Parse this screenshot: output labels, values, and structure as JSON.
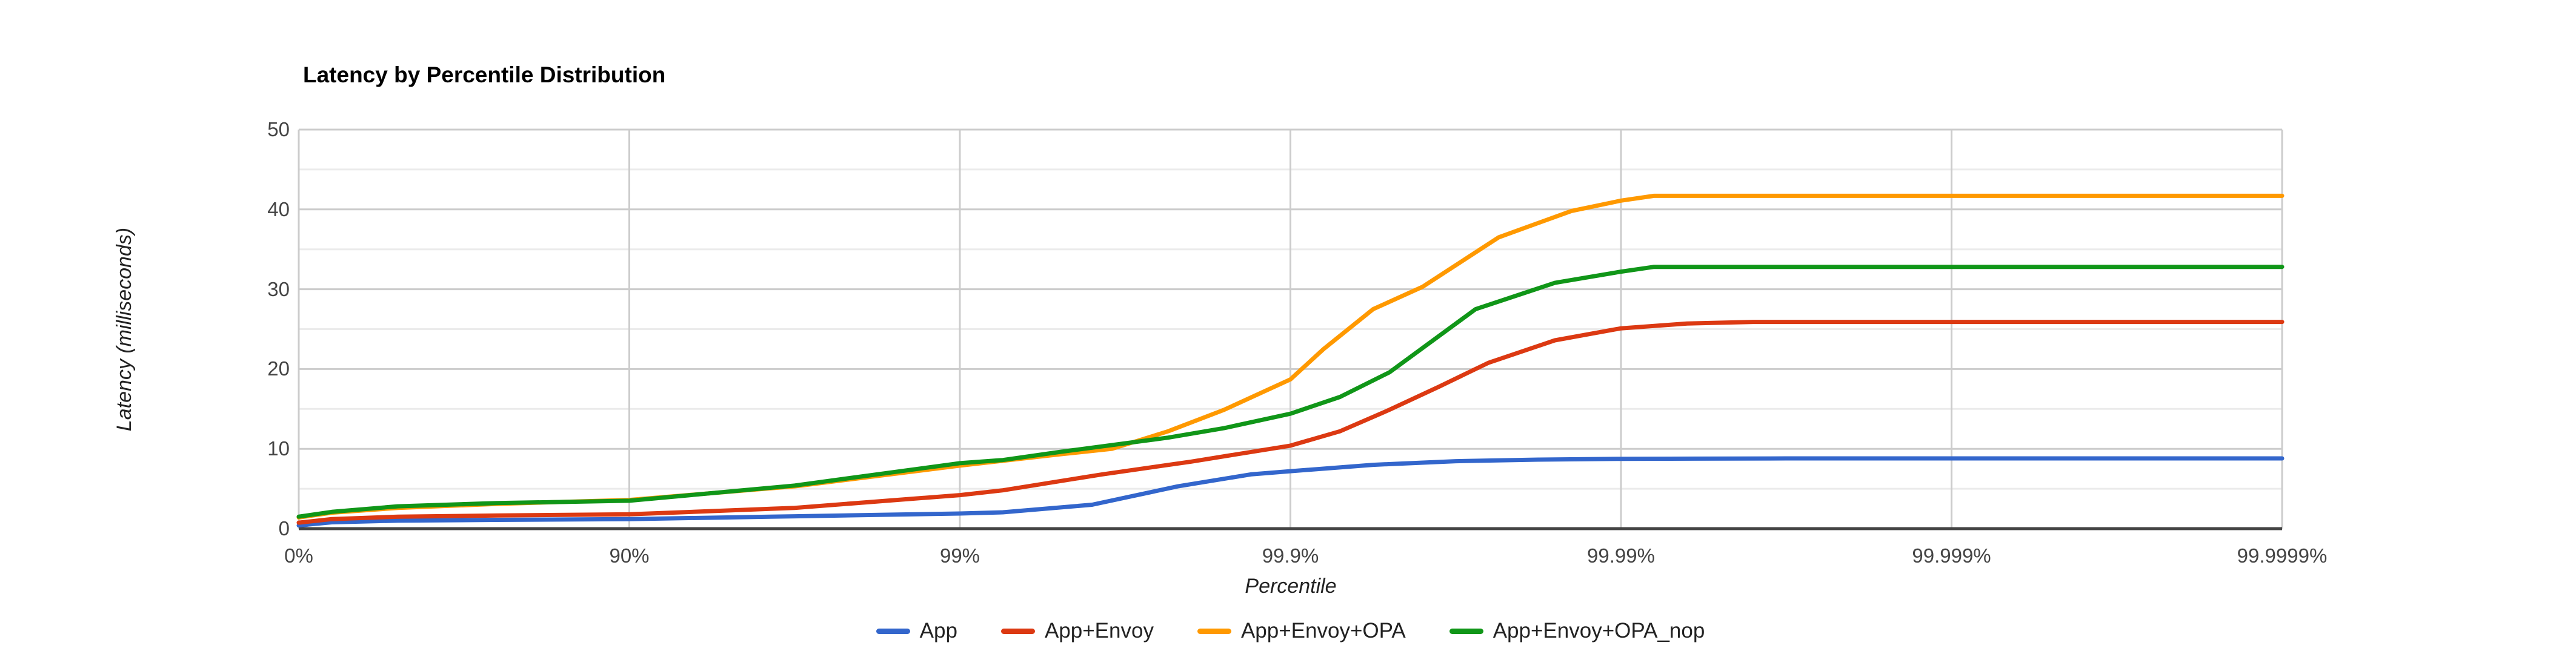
{
  "chart_data": {
    "type": "line",
    "title": "Latency by Percentile Distribution",
    "xlabel": "Percentile",
    "ylabel": "Latency (milliseconds)",
    "x_scale": "logarithmic percentile axis; x unit below = number of nines (0 = 0%, 1 = 90%, 2 = 99%, 3 = 99.9%, 4 = 99.99%, 5 = 99.999%, 6 = 99.9999%)",
    "x_tick_labels": [
      "0%",
      "90%",
      "99%",
      "99.9%",
      "99.99%",
      "99.999%",
      "99.9999%"
    ],
    "y_ticks": [
      0,
      10,
      20,
      30,
      40,
      50
    ],
    "y_tick_labels": [
      "0",
      "10",
      "20",
      "30",
      "40",
      "50"
    ],
    "ylim": [
      0,
      50
    ],
    "grid": "horizontal major lines every 10 ms, minor every 5 ms; vertical line at each percentile tick",
    "legend_position": "bottom",
    "axis_colors": {
      "tick_label": "#444444",
      "major_grid": "#cccccc",
      "minor_grid": "#ebebeb",
      "baseline": "#444444"
    },
    "series": [
      {
        "name": "App",
        "color": "#3366CC",
        "plateau_ms": 8.8,
        "points": [
          [
            0,
            0.4
          ],
          [
            0.1,
            0.8
          ],
          [
            0.3,
            1.0
          ],
          [
            0.6,
            1.1
          ],
          [
            1,
            1.2
          ],
          [
            1.5,
            1.55
          ],
          [
            2,
            1.9
          ],
          [
            2.13,
            2.05
          ],
          [
            2.4,
            3.0
          ],
          [
            2.66,
            5.3
          ],
          [
            2.88,
            6.8
          ],
          [
            3,
            7.2
          ],
          [
            3.25,
            8.0
          ],
          [
            3.5,
            8.45
          ],
          [
            3.75,
            8.65
          ],
          [
            4,
            8.75
          ],
          [
            4.5,
            8.8
          ],
          [
            5,
            8.8
          ],
          [
            6,
            8.8
          ]
        ]
      },
      {
        "name": "App+Envoy",
        "color": "#DC3912",
        "plateau_ms": 25.9,
        "points": [
          [
            0,
            0.75
          ],
          [
            0.1,
            1.2
          ],
          [
            0.3,
            1.5
          ],
          [
            0.6,
            1.65
          ],
          [
            1,
            1.8
          ],
          [
            1.5,
            2.6
          ],
          [
            2,
            4.2
          ],
          [
            2.13,
            4.8
          ],
          [
            2.43,
            6.8
          ],
          [
            2.7,
            8.4
          ],
          [
            3,
            10.4
          ],
          [
            3.15,
            12.2
          ],
          [
            3.3,
            14.9
          ],
          [
            3.45,
            17.8
          ],
          [
            3.6,
            20.8
          ],
          [
            3.8,
            23.6
          ],
          [
            4,
            25.1
          ],
          [
            4.2,
            25.7
          ],
          [
            4.4,
            25.9
          ],
          [
            5,
            25.9
          ],
          [
            6,
            25.9
          ]
        ]
      },
      {
        "name": "App+Envoy+OPA",
        "color": "#FF9900",
        "plateau_ms": 41.7,
        "points": [
          [
            0,
            1.4
          ],
          [
            0.1,
            2.0
          ],
          [
            0.3,
            2.6
          ],
          [
            0.6,
            3.1
          ],
          [
            1,
            3.6
          ],
          [
            1.5,
            5.3
          ],
          [
            2,
            7.9
          ],
          [
            2.3,
            9.3
          ],
          [
            2.46,
            10.0
          ],
          [
            2.63,
            12.2
          ],
          [
            2.8,
            14.9
          ],
          [
            3,
            18.7
          ],
          [
            3.1,
            22.5
          ],
          [
            3.25,
            27.5
          ],
          [
            3.4,
            30.3
          ],
          [
            3.63,
            36.5
          ],
          [
            3.85,
            39.8
          ],
          [
            4,
            41.1
          ],
          [
            4.1,
            41.7
          ],
          [
            4.5,
            41.7
          ],
          [
            5,
            41.7
          ],
          [
            6,
            41.7
          ]
        ]
      },
      {
        "name": "App+Envoy+OPA_nop",
        "color": "#109618",
        "plateau_ms": 32.8,
        "points": [
          [
            0,
            1.5
          ],
          [
            0.1,
            2.1
          ],
          [
            0.3,
            2.8
          ],
          [
            0.6,
            3.2
          ],
          [
            1,
            3.5
          ],
          [
            1.5,
            5.4
          ],
          [
            2,
            8.2
          ],
          [
            2.13,
            8.6
          ],
          [
            2.3,
            9.6
          ],
          [
            2.63,
            11.4
          ],
          [
            2.8,
            12.6
          ],
          [
            3,
            14.4
          ],
          [
            3.15,
            16.5
          ],
          [
            3.3,
            19.6
          ],
          [
            3.56,
            27.5
          ],
          [
            3.8,
            30.8
          ],
          [
            4,
            32.2
          ],
          [
            4.1,
            32.8
          ],
          [
            4.5,
            32.8
          ],
          [
            5,
            32.8
          ],
          [
            6,
            32.8
          ]
        ]
      }
    ]
  }
}
